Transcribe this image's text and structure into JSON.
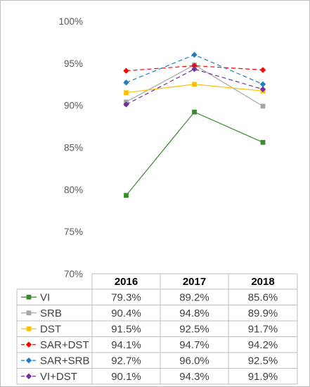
{
  "chart_data": {
    "type": "line",
    "categories": [
      "2016",
      "2017",
      "2018"
    ],
    "ylim": [
      0.7,
      1.0
    ],
    "yticks": [
      "70%",
      "75%",
      "80%",
      "85%",
      "90%",
      "95%",
      "100%"
    ],
    "grid": false,
    "legend": "data-table",
    "series": [
      {
        "name": "VI",
        "color": "#3a8a2e",
        "dash": "solid",
        "marker": "square",
        "values": [
          0.793,
          0.892,
          0.856
        ],
        "labels": [
          "79.3%",
          "89.2%",
          "85.6%"
        ]
      },
      {
        "name": "SRB",
        "color": "#a6a6a6",
        "dash": "solid",
        "marker": "square",
        "values": [
          0.904,
          0.948,
          0.899
        ],
        "labels": [
          "90.4%",
          "94.8%",
          "89.9%"
        ]
      },
      {
        "name": "DST",
        "color": "#ffc000",
        "dash": "solid",
        "marker": "square",
        "values": [
          0.915,
          0.925,
          0.917
        ],
        "labels": [
          "91.5%",
          "92.5%",
          "91.7%"
        ]
      },
      {
        "name": "SAR+DST",
        "color": "#ff0000",
        "dash": "dashed",
        "marker": "diamond",
        "values": [
          0.941,
          0.947,
          0.942
        ],
        "labels": [
          "94.1%",
          "94.7%",
          "94.2%"
        ]
      },
      {
        "name": "SAR+SRB",
        "color": "#1f7ec2",
        "dash": "dashed",
        "marker": "diamond",
        "values": [
          0.927,
          0.96,
          0.925
        ],
        "labels": [
          "92.7%",
          "96.0%",
          "92.5%"
        ]
      },
      {
        "name": "VI+DST",
        "color": "#7030a0",
        "dash": "dashed",
        "marker": "diamond",
        "values": [
          0.901,
          0.943,
          0.919
        ],
        "labels": [
          "90.1%",
          "94.3%",
          "91.9%"
        ]
      }
    ]
  }
}
